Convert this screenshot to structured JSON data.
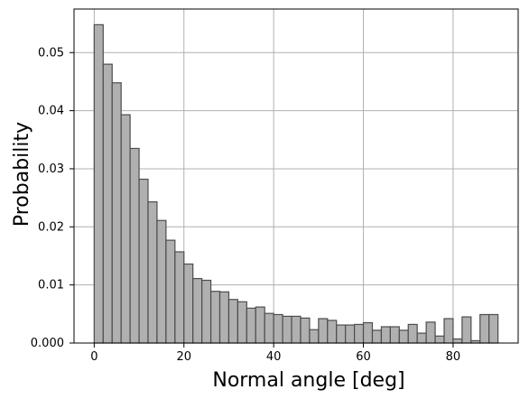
{
  "chart_data": {
    "type": "bar",
    "title": "",
    "xlabel": "Normal angle [deg]",
    "ylabel": "Probability",
    "xlim": [
      -4.5,
      94.5
    ],
    "ylim": [
      0,
      0.0575
    ],
    "grid": true,
    "bar_color": "#b0b0b0",
    "bar_edge_color": "#4d4d4d",
    "grid_color": "#b0b0b0",
    "bin_width": 2,
    "x_ticks": [
      {
        "value": 0,
        "label": "0"
      },
      {
        "value": 20,
        "label": "20"
      },
      {
        "value": 40,
        "label": "40"
      },
      {
        "value": 60,
        "label": "60"
      },
      {
        "value": 80,
        "label": "80"
      }
    ],
    "y_ticks": [
      {
        "value": 0,
        "label": "0.000"
      },
      {
        "value": 0.01,
        "label": "0.01"
      },
      {
        "value": 0.02,
        "label": "0.02"
      },
      {
        "value": 0.03,
        "label": "0.03"
      },
      {
        "value": 0.04,
        "label": "0.04"
      },
      {
        "value": 0.05,
        "label": "0.05"
      }
    ],
    "bin_starts": [
      0,
      2,
      4,
      6,
      8,
      10,
      12,
      14,
      16,
      18,
      20,
      22,
      24,
      26,
      28,
      30,
      32,
      34,
      36,
      38,
      40,
      42,
      44,
      46,
      48,
      50,
      52,
      54,
      56,
      58,
      60,
      62,
      64,
      66,
      68,
      70,
      72,
      74,
      76,
      78,
      80,
      82,
      84,
      86,
      88
    ],
    "values": [
      0.0548,
      0.048,
      0.0448,
      0.0393,
      0.0335,
      0.0282,
      0.0243,
      0.0211,
      0.0177,
      0.0157,
      0.0136,
      0.0111,
      0.0108,
      0.0089,
      0.0088,
      0.0075,
      0.0071,
      0.006,
      0.0062,
      0.0051,
      0.0049,
      0.0046,
      0.0046,
      0.0043,
      0.0023,
      0.0042,
      0.0039,
      0.0031,
      0.0031,
      0.0032,
      0.0035,
      0.0022,
      0.0028,
      0.0028,
      0.0022,
      0.0032,
      0.0017,
      0.0036,
      0.0012,
      0.0042,
      0.0007,
      0.0045,
      0.0004,
      0.0049,
      0.0049
    ]
  }
}
